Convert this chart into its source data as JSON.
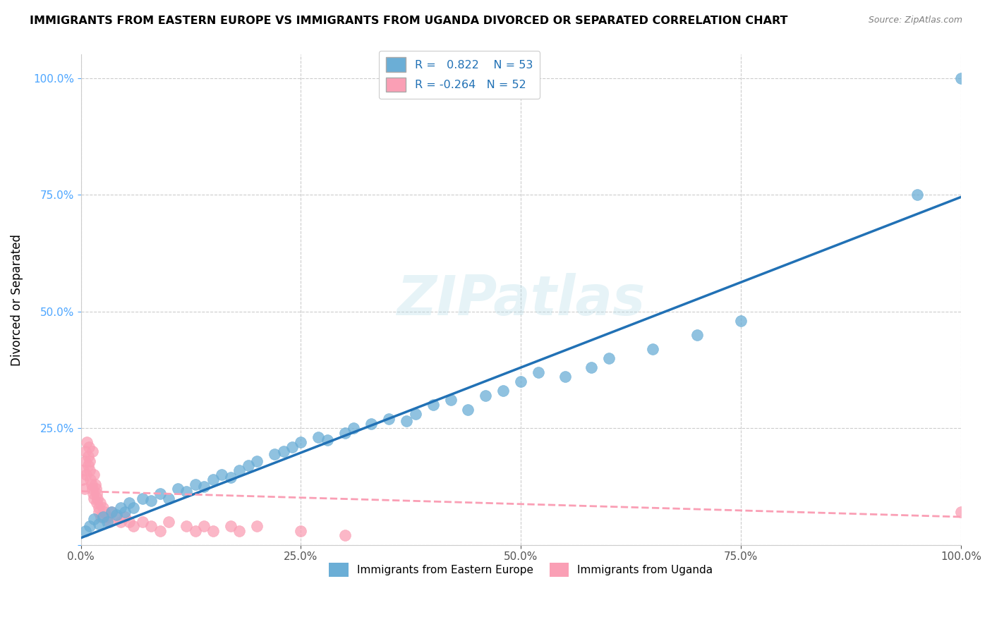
{
  "title": "IMMIGRANTS FROM EASTERN EUROPE VS IMMIGRANTS FROM UGANDA DIVORCED OR SEPARATED CORRELATION CHART",
  "source": "Source: ZipAtlas.com",
  "xlabel_bottom": "Immigrants from Eastern Europe",
  "xlabel_bottom2": "Immigrants from Uganda",
  "ylabel": "Divorced or Separated",
  "blue_R": 0.822,
  "blue_N": 53,
  "pink_R": -0.264,
  "pink_N": 52,
  "blue_color": "#6baed6",
  "pink_color": "#fa9fb5",
  "blue_line_color": "#2171b5",
  "pink_line_color": "#f768a1",
  "watermark_text": "ZIPatlas",
  "blue_points_x": [
    0.5,
    1.0,
    1.5,
    2.0,
    2.5,
    3.0,
    3.5,
    4.0,
    4.5,
    5.0,
    5.5,
    6.0,
    7.0,
    8.0,
    9.0,
    10.0,
    11.0,
    12.0,
    13.0,
    14.0,
    15.0,
    16.0,
    17.0,
    18.0,
    19.0,
    20.0,
    22.0,
    23.0,
    24.0,
    25.0,
    27.0,
    28.0,
    30.0,
    31.0,
    33.0,
    35.0,
    37.0,
    38.0,
    40.0,
    42.0,
    44.0,
    46.0,
    48.0,
    50.0,
    52.0,
    55.0,
    58.0,
    60.0,
    65.0,
    70.0,
    75.0,
    95.0,
    100.0
  ],
  "blue_points_y": [
    3.0,
    4.0,
    5.5,
    4.5,
    6.0,
    5.0,
    7.0,
    6.5,
    8.0,
    7.0,
    9.0,
    8.0,
    10.0,
    9.5,
    11.0,
    10.0,
    12.0,
    11.5,
    13.0,
    12.5,
    14.0,
    15.0,
    14.5,
    16.0,
    17.0,
    18.0,
    19.5,
    20.0,
    21.0,
    22.0,
    23.0,
    22.5,
    24.0,
    25.0,
    26.0,
    27.0,
    26.5,
    28.0,
    30.0,
    31.0,
    29.0,
    32.0,
    33.0,
    35.0,
    37.0,
    36.0,
    38.0,
    40.0,
    42.0,
    45.0,
    48.0,
    75.0,
    100.0
  ],
  "pink_points_x": [
    0.2,
    0.3,
    0.4,
    0.5,
    0.5,
    0.6,
    0.7,
    0.8,
    0.8,
    0.9,
    1.0,
    1.0,
    1.1,
    1.2,
    1.3,
    1.3,
    1.4,
    1.5,
    1.5,
    1.6,
    1.7,
    1.8,
    1.8,
    1.9,
    2.0,
    2.0,
    2.2,
    2.3,
    2.5,
    2.7,
    3.0,
    3.2,
    3.5,
    4.0,
    4.5,
    5.0,
    5.5,
    6.0,
    7.0,
    8.0,
    9.0,
    10.0,
    12.0,
    13.0,
    14.0,
    15.0,
    17.0,
    18.0,
    20.0,
    25.0,
    30.0,
    100.0
  ],
  "pink_points_y": [
    14.0,
    16.0,
    12.0,
    20.0,
    18.0,
    15.0,
    22.0,
    19.0,
    17.0,
    21.0,
    16.0,
    18.0,
    14.0,
    13.0,
    20.0,
    12.0,
    11.0,
    15.0,
    10.0,
    13.0,
    12.0,
    9.0,
    11.0,
    10.0,
    8.0,
    7.0,
    9.0,
    6.0,
    8.0,
    7.0,
    6.0,
    5.0,
    7.0,
    6.0,
    5.0,
    6.0,
    5.0,
    4.0,
    5.0,
    4.0,
    3.0,
    5.0,
    4.0,
    3.0,
    4.0,
    3.0,
    4.0,
    3.0,
    4.0,
    3.0,
    2.0,
    7.0
  ],
  "xmin": 0.0,
  "xmax": 100.0,
  "ymin": 0.0,
  "ymax": 105.0,
  "xticks": [
    0.0,
    25.0,
    50.0,
    75.0,
    100.0
  ],
  "yticks": [
    0.0,
    25.0,
    50.0,
    75.0,
    100.0
  ],
  "xtick_labels": [
    "0.0%",
    "25.0%",
    "50.0%",
    "75.0%",
    "100.0%"
  ],
  "ytick_labels": [
    "",
    "25.0%",
    "50.0%",
    "75.0%",
    "100.0%"
  ],
  "blue_slope": 0.73,
  "blue_intercept": 1.5,
  "pink_slope": -0.055,
  "pink_intercept": 11.5
}
